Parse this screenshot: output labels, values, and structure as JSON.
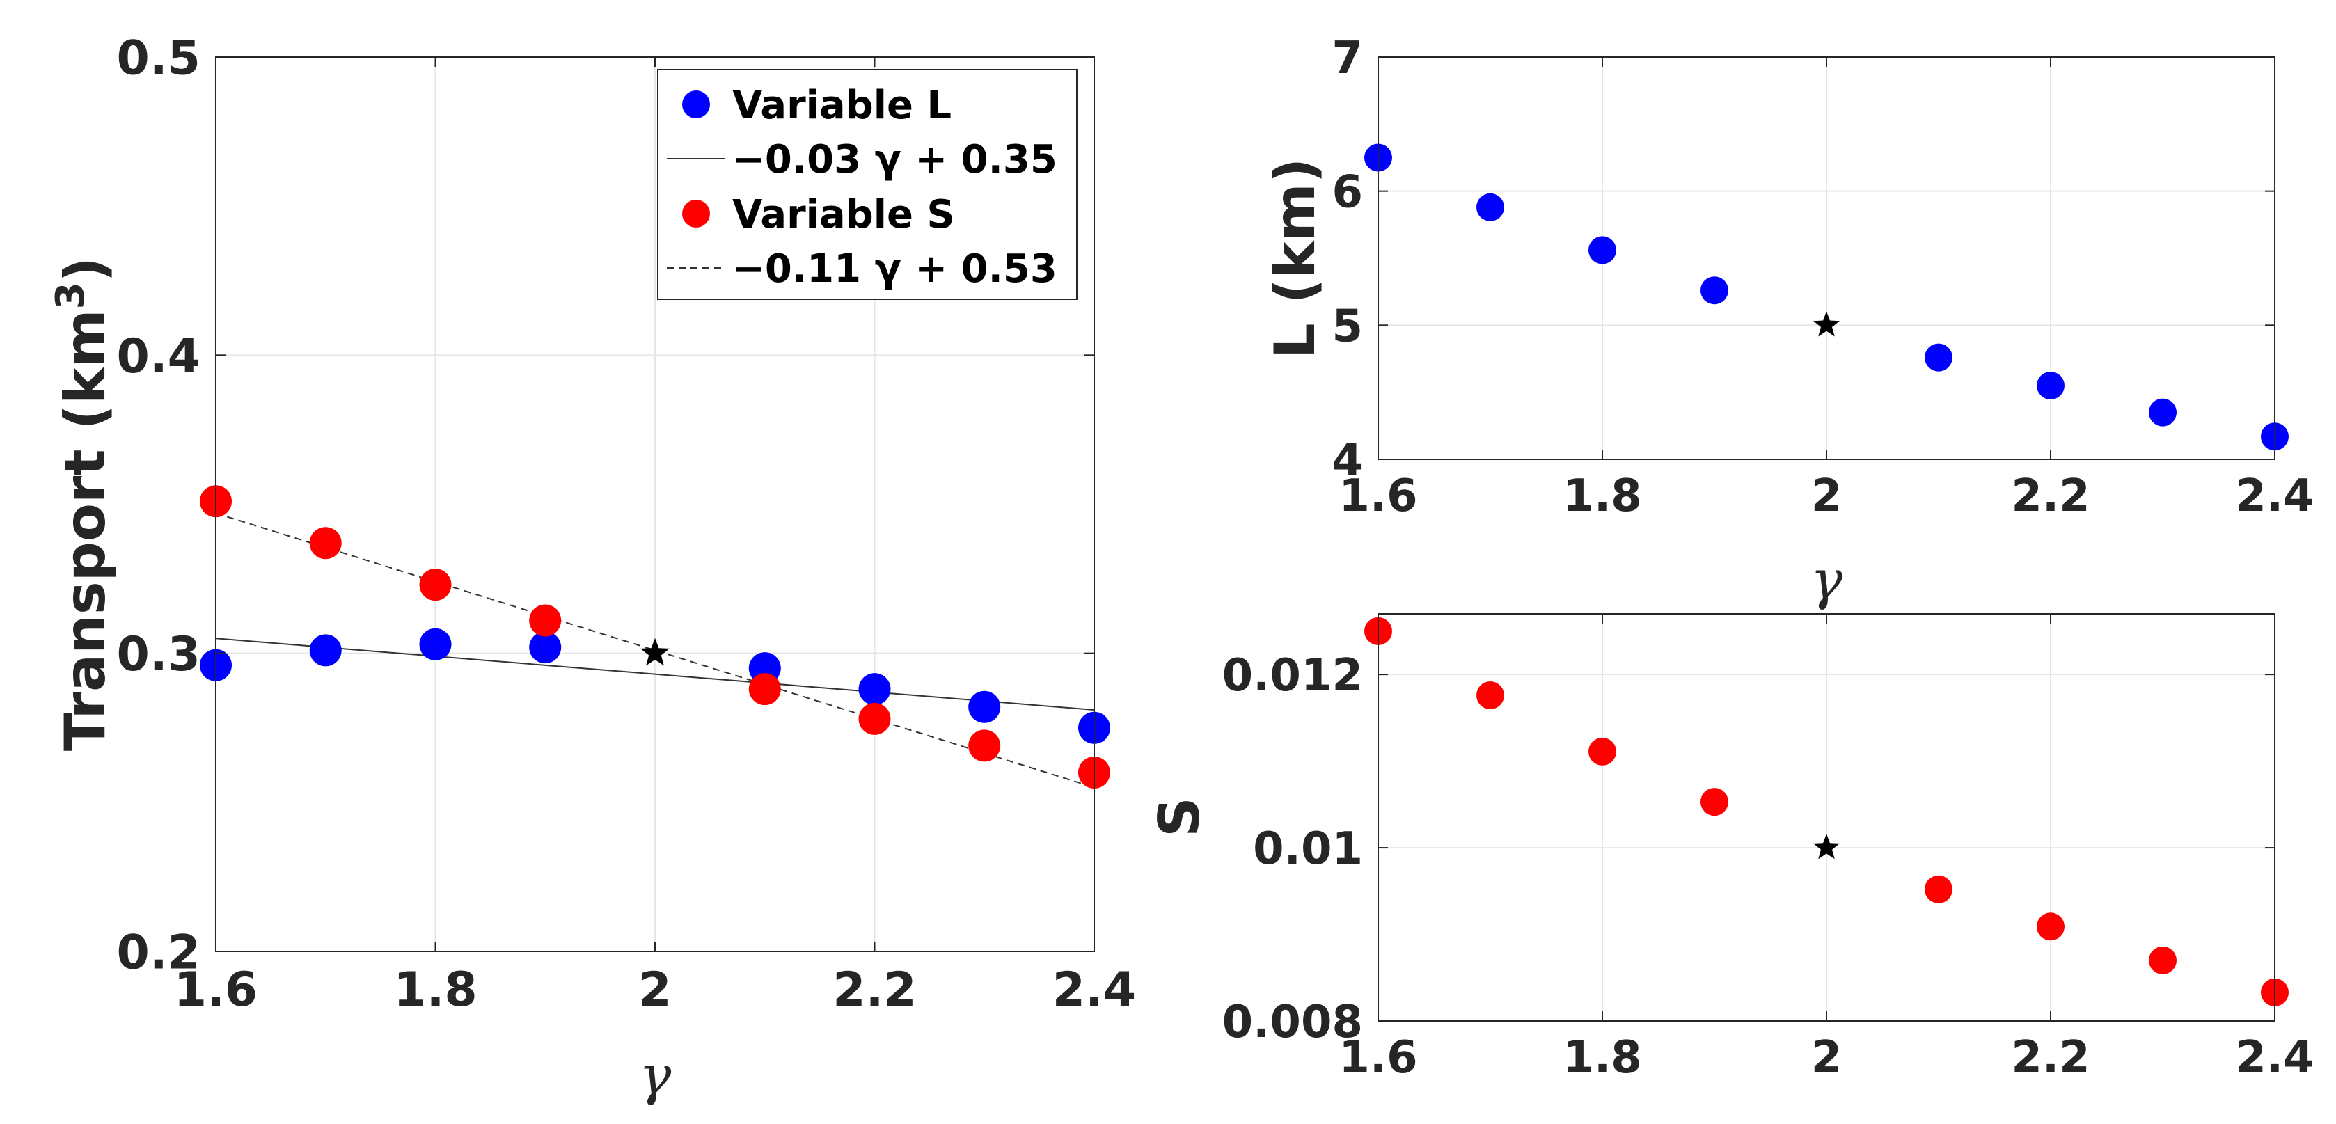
{
  "chart_data": [
    {
      "id": "transport",
      "type": "scatter",
      "xlabel": "γ",
      "ylabel_main": "Transport (km",
      "ylabel_sup": "3",
      "ylabel_close": ")",
      "xlim": [
        1.6,
        2.4
      ],
      "ylim": [
        0.2,
        0.5
      ],
      "xticks": [
        1.6,
        1.8,
        2.0,
        2.2,
        2.4
      ],
      "xtick_labels": [
        "1.6",
        "1.8",
        "2",
        "2.2",
        "2.4"
      ],
      "yticks": [
        0.2,
        0.3,
        0.4,
        0.5
      ],
      "ytick_labels": [
        "0.2",
        "0.3",
        "0.4",
        "0.5"
      ],
      "grid": true,
      "legend_position": "top-right",
      "series": [
        {
          "name": "Variable L",
          "color": "#0000ff",
          "x": [
            1.6,
            1.7,
            1.8,
            1.9,
            2.1,
            2.2,
            2.3,
            2.4
          ],
          "y": [
            0.296,
            0.301,
            0.303,
            0.302,
            0.295,
            0.288,
            0.282,
            0.275
          ]
        },
        {
          "name": "Variable S",
          "color": "#ff0000",
          "x": [
            1.6,
            1.7,
            1.8,
            1.9,
            2.1,
            2.2,
            2.3,
            2.4
          ],
          "y": [
            0.351,
            0.337,
            0.323,
            0.311,
            0.288,
            0.278,
            0.269,
            0.26
          ]
        }
      ],
      "fits": [
        {
          "label": "−0.03 γ + 0.35",
          "slope": -0.03,
          "intercept": 0.353,
          "style": "solid",
          "color": "#333333"
        },
        {
          "label": "−0.11 γ + 0.53",
          "slope": -0.115,
          "intercept": 0.531,
          "style": "dashed",
          "color": "#333333"
        }
      ],
      "reference_point": {
        "x": 2.0,
        "y": 0.3,
        "marker": "star"
      }
    },
    {
      "id": "length",
      "type": "scatter",
      "xlabel": "γ",
      "ylabel": "L (km)",
      "xlim": [
        1.6,
        2.4
      ],
      "ylim": [
        4,
        7
      ],
      "xticks": [
        1.6,
        1.8,
        2.0,
        2.2,
        2.4
      ],
      "xtick_labels": [
        "1.6",
        "1.8",
        "2",
        "2.2",
        "2.4"
      ],
      "yticks": [
        4,
        5,
        6,
        7
      ],
      "ytick_labels": [
        "4",
        "5",
        "6",
        "7"
      ],
      "grid": true,
      "series": [
        {
          "name": "L",
          "color": "#0000ff",
          "x": [
            1.6,
            1.7,
            1.8,
            1.9,
            2.1,
            2.2,
            2.3,
            2.4
          ],
          "y": [
            6.25,
            5.88,
            5.56,
            5.26,
            4.76,
            4.55,
            4.35,
            4.17
          ]
        }
      ],
      "reference_point": {
        "x": 2.0,
        "y": 5.0,
        "marker": "star"
      }
    },
    {
      "id": "slope",
      "type": "scatter",
      "xlabel": "",
      "ylabel": "S",
      "xlim": [
        1.6,
        2.4
      ],
      "ylim": [
        0.008,
        0.0127
      ],
      "xticks": [
        1.6,
        1.8,
        2.0,
        2.2,
        2.4
      ],
      "xtick_labels": [
        "1.6",
        "1.8",
        "2",
        "2.2",
        "2.4"
      ],
      "yticks": [
        0.008,
        0.01,
        0.012
      ],
      "ytick_labels": [
        "0.008",
        "0.01",
        "0.012"
      ],
      "grid": true,
      "series": [
        {
          "name": "S",
          "color": "#ff0000",
          "x": [
            1.6,
            1.7,
            1.8,
            1.9,
            2.1,
            2.2,
            2.3,
            2.4
          ],
          "y": [
            0.0125,
            0.01176,
            0.01111,
            0.01053,
            0.00952,
            0.00909,
            0.0087,
            0.00833
          ]
        }
      ],
      "reference_point": {
        "x": 2.0,
        "y": 0.01,
        "marker": "star"
      }
    }
  ]
}
